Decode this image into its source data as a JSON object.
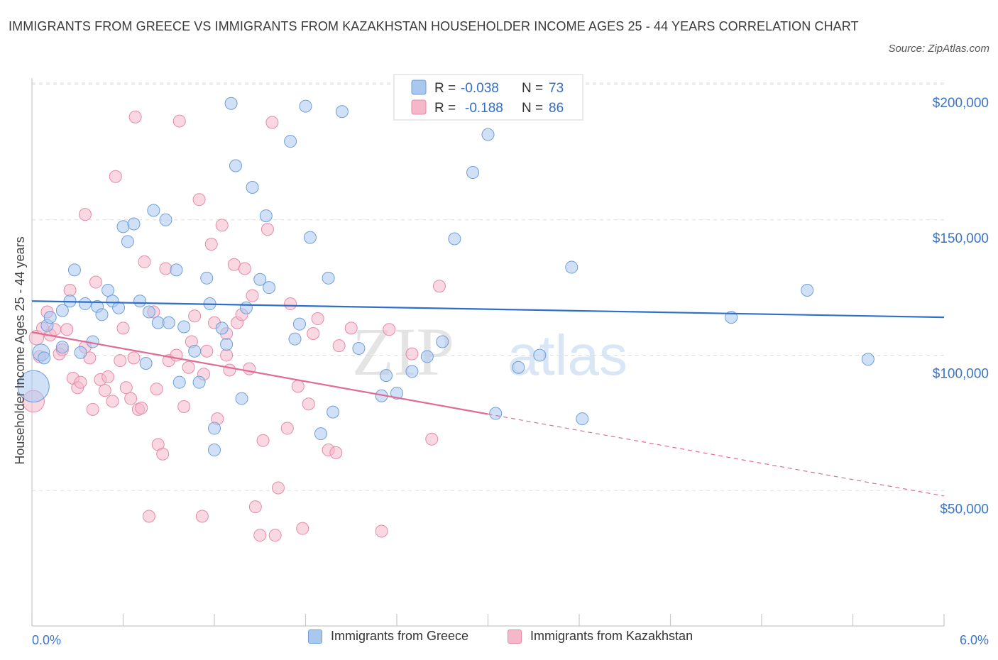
{
  "title": "IMMIGRANTS FROM GREECE VS IMMIGRANTS FROM KAZAKHSTAN HOUSEHOLDER INCOME AGES 25 - 44 YEARS CORRELATION CHART",
  "source": "Source: ZipAtlas.com",
  "watermark": {
    "zip": "ZIP",
    "atlas": "atlas"
  },
  "colors": {
    "greece_fill": "#a9c8f0",
    "greece_stroke": "#6f9fd8",
    "greece_line": "#2f6fc9",
    "kaz_fill": "#f5b8cb",
    "kaz_stroke": "#e68aa8",
    "kaz_line": "#e06b95",
    "axis_label": "#3b75c7",
    "grid": "#dddddd"
  },
  "legend_top": [
    {
      "r_label": "R =",
      "r_value": "-0.038",
      "n_label": "N =",
      "n_value": "73"
    },
    {
      "r_label": "R =",
      "r_value": "-0.188",
      "n_label": "N =",
      "n_value": "86"
    }
  ],
  "legend_bottom": [
    "Immigrants from Greece",
    "Immigrants from Kazakhstan"
  ],
  "chart_data": {
    "type": "scatter",
    "xlabel": "",
    "ylabel": "Householder Income Ages 25 - 44 years",
    "xlim": [
      0,
      6
    ],
    "ylim": [
      0,
      205000
    ],
    "x_tick_labels": [
      "0.0%",
      "6.0%"
    ],
    "y_ticks": [
      50000,
      100000,
      150000,
      200000
    ],
    "y_tick_labels": [
      "$50,000",
      "$100,000",
      "$150,000",
      "$200,000"
    ],
    "grid": "horizontal dashed",
    "legend_position": "top-center",
    "series": [
      {
        "name": "Immigrants from Greece",
        "r": -0.038,
        "n": 73,
        "trend": {
          "x": [
            0,
            6
          ],
          "y": [
            120000,
            114000
          ],
          "solid_until": 6
        },
        "points": [
          [
            0.01,
            88500,
            26
          ],
          [
            0.06,
            101000,
            14
          ],
          [
            0.08,
            99000,
            10
          ],
          [
            0.1,
            111000,
            10
          ],
          [
            0.12,
            114000,
            10
          ],
          [
            0.2,
            103000,
            10
          ],
          [
            0.2,
            116500,
            10
          ],
          [
            0.25,
            120000,
            10
          ],
          [
            0.28,
            131500,
            10
          ],
          [
            0.35,
            119000,
            10
          ],
          [
            0.4,
            105000,
            10
          ],
          [
            0.43,
            118000,
            10
          ],
          [
            0.46,
            115000,
            10
          ],
          [
            0.5,
            124000,
            10
          ],
          [
            0.53,
            120000,
            10
          ],
          [
            0.57,
            117500,
            10
          ],
          [
            0.6,
            147500,
            10
          ],
          [
            0.63,
            142000,
            10
          ],
          [
            0.67,
            148500,
            10
          ],
          [
            0.71,
            120000,
            10
          ],
          [
            0.75,
            97000,
            10
          ],
          [
            0.77,
            116000,
            10
          ],
          [
            0.8,
            153500,
            10
          ],
          [
            0.83,
            112000,
            10
          ],
          [
            0.88,
            150000,
            10
          ],
          [
            0.9,
            112000,
            10
          ],
          [
            0.95,
            131500,
            10
          ],
          [
            0.97,
            90000,
            10
          ],
          [
            1.0,
            110500,
            10
          ],
          [
            1.07,
            101500,
            10
          ],
          [
            1.1,
            90000,
            10
          ],
          [
            1.15,
            128500,
            10
          ],
          [
            1.17,
            119000,
            10
          ],
          [
            1.2,
            73000,
            10
          ],
          [
            1.2,
            65000,
            10
          ],
          [
            1.25,
            110000,
            10
          ],
          [
            1.28,
            104000,
            10
          ],
          [
            1.31,
            193000,
            10
          ],
          [
            1.34,
            170000,
            10
          ],
          [
            1.38,
            84000,
            10
          ],
          [
            1.41,
            117500,
            10
          ],
          [
            1.45,
            162000,
            10
          ],
          [
            1.5,
            128000,
            10
          ],
          [
            1.54,
            151500,
            10
          ],
          [
            1.56,
            125000,
            10
          ],
          [
            1.7,
            179000,
            10
          ],
          [
            1.73,
            106000,
            10
          ],
          [
            1.76,
            111500,
            10
          ],
          [
            1.8,
            192000,
            10
          ],
          [
            1.83,
            143500,
            10
          ],
          [
            1.9,
            71000,
            10
          ],
          [
            1.95,
            128500,
            10
          ],
          [
            1.98,
            79000,
            10
          ],
          [
            2.04,
            190000,
            10
          ],
          [
            2.15,
            102500,
            10
          ],
          [
            2.3,
            85000,
            10
          ],
          [
            2.33,
            92500,
            10
          ],
          [
            2.4,
            86000,
            10
          ],
          [
            2.5,
            94000,
            10
          ],
          [
            2.6,
            99500,
            10
          ],
          [
            2.7,
            105000,
            10
          ],
          [
            2.78,
            143000,
            10
          ],
          [
            2.9,
            167500,
            10
          ],
          [
            3.0,
            181500,
            10
          ],
          [
            3.05,
            78500,
            10
          ],
          [
            3.2,
            95500,
            10
          ],
          [
            3.34,
            100000,
            10
          ],
          [
            3.55,
            132500,
            10
          ],
          [
            3.62,
            76500,
            10
          ],
          [
            4.6,
            114000,
            10
          ],
          [
            5.1,
            124000,
            10
          ],
          [
            5.5,
            98500,
            10
          ],
          [
            0.32,
            101000,
            10
          ]
        ]
      },
      {
        "name": "Immigrants from Kazakhstan",
        "r": -0.188,
        "n": 86,
        "trend": {
          "x": [
            0,
            6
          ],
          "y": [
            108500,
            48000
          ],
          "solid_until": 3.0
        },
        "points": [
          [
            0.01,
            83000,
            18
          ],
          [
            0.03,
            106500,
            12
          ],
          [
            0.05,
            99500,
            10
          ],
          [
            0.07,
            110000,
            10
          ],
          [
            0.1,
            116000,
            10
          ],
          [
            0.12,
            107500,
            10
          ],
          [
            0.15,
            109500,
            10
          ],
          [
            0.18,
            100500,
            10
          ],
          [
            0.2,
            102000,
            10
          ],
          [
            0.23,
            109500,
            10
          ],
          [
            0.25,
            124000,
            10
          ],
          [
            0.27,
            91500,
            10
          ],
          [
            0.3,
            88000,
            10
          ],
          [
            0.32,
            90000,
            10
          ],
          [
            0.35,
            103000,
            10
          ],
          [
            0.35,
            152000,
            10
          ],
          [
            0.38,
            99000,
            10
          ],
          [
            0.4,
            80000,
            10
          ],
          [
            0.42,
            127000,
            10
          ],
          [
            0.45,
            91000,
            10
          ],
          [
            0.48,
            87000,
            10
          ],
          [
            0.5,
            92000,
            10
          ],
          [
            0.53,
            83000,
            10
          ],
          [
            0.55,
            166000,
            10
          ],
          [
            0.58,
            98000,
            10
          ],
          [
            0.6,
            110000,
            10
          ],
          [
            0.62,
            88000,
            10
          ],
          [
            0.65,
            84000,
            10
          ],
          [
            0.67,
            99000,
            10
          ],
          [
            0.68,
            188000,
            10
          ],
          [
            0.7,
            80000,
            10
          ],
          [
            0.72,
            80500,
            10
          ],
          [
            0.74,
            134500,
            10
          ],
          [
            0.77,
            40500,
            10
          ],
          [
            0.8,
            116000,
            10
          ],
          [
            0.82,
            87500,
            10
          ],
          [
            0.83,
            67000,
            10
          ],
          [
            0.86,
            63500,
            10
          ],
          [
            0.88,
            132000,
            10
          ],
          [
            0.9,
            98000,
            10
          ],
          [
            0.95,
            100000,
            10
          ],
          [
            0.97,
            186500,
            10
          ],
          [
            1.0,
            81000,
            10
          ],
          [
            1.03,
            95500,
            10
          ],
          [
            1.05,
            105000,
            10
          ],
          [
            1.07,
            114500,
            10
          ],
          [
            1.1,
            157500,
            10
          ],
          [
            1.12,
            40500,
            10
          ],
          [
            1.13,
            93000,
            10
          ],
          [
            1.15,
            101500,
            10
          ],
          [
            1.18,
            141000,
            10
          ],
          [
            1.2,
            112000,
            10
          ],
          [
            1.22,
            76500,
            10
          ],
          [
            1.25,
            148000,
            10
          ],
          [
            1.28,
            100000,
            10
          ],
          [
            1.3,
            94500,
            10
          ],
          [
            1.33,
            133500,
            10
          ],
          [
            1.35,
            112000,
            10
          ],
          [
            1.38,
            115000,
            10
          ],
          [
            1.4,
            132000,
            10
          ],
          [
            1.43,
            95000,
            10
          ],
          [
            1.45,
            122000,
            10
          ],
          [
            1.47,
            44000,
            10
          ],
          [
            1.5,
            33500,
            10
          ],
          [
            1.52,
            68500,
            10
          ],
          [
            1.55,
            146500,
            10
          ],
          [
            1.58,
            186000,
            10
          ],
          [
            1.6,
            33500,
            10
          ],
          [
            1.62,
            51000,
            10
          ],
          [
            1.68,
            73000,
            10
          ],
          [
            1.7,
            119000,
            10
          ],
          [
            1.75,
            88500,
            10
          ],
          [
            1.78,
            36000,
            10
          ],
          [
            1.82,
            82000,
            10
          ],
          [
            1.85,
            108000,
            10
          ],
          [
            1.88,
            113500,
            10
          ],
          [
            1.95,
            65000,
            10
          ],
          [
            2.0,
            64000,
            10
          ],
          [
            2.02,
            103500,
            10
          ],
          [
            2.1,
            110000,
            10
          ],
          [
            2.3,
            35000,
            10
          ],
          [
            2.35,
            109500,
            10
          ],
          [
            2.5,
            100500,
            10
          ],
          [
            2.63,
            69000,
            10
          ],
          [
            2.68,
            125500,
            10
          ],
          [
            1.28,
            108000,
            10
          ]
        ]
      }
    ]
  }
}
